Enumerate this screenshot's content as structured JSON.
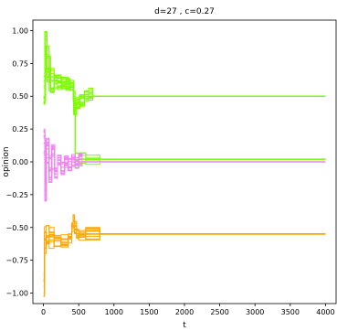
{
  "chart_data": {
    "type": "line",
    "title": "d=27 , c=0.27",
    "xlabel": "t",
    "ylabel": "opinion",
    "xlim": [
      -150,
      4150
    ],
    "ylim": [
      -1.08,
      1.08
    ],
    "xticks": [
      0,
      500,
      1000,
      1500,
      2000,
      2500,
      3000,
      3500,
      4000
    ],
    "xtick_labels": [
      "0",
      "500",
      "1000",
      "1500",
      "2000",
      "2500",
      "3000",
      "3500",
      "4000"
    ],
    "yticks": [
      1.0,
      0.75,
      0.5,
      0.25,
      0.0,
      -0.25,
      -0.5,
      -0.75,
      -1.0
    ],
    "ytick_labels": [
      "1.00",
      "0.75",
      "0.50",
      "0.25",
      "0.00",
      "−0.25",
      "−0.50",
      "−0.75",
      "−1.00"
    ],
    "grid": false,
    "series": [
      {
        "color": "#7cfc00",
        "converged_value": 0.5,
        "count": 12,
        "x": [
          0,
          20,
          50,
          100,
          150,
          200,
          260,
          320,
          380,
          430,
          470,
          520,
          580,
          640,
          700,
          800,
          900,
          1000,
          2000,
          3000,
          4000
        ],
        "y": [
          0.55,
          0.9,
          0.7,
          0.62,
          0.6,
          0.6,
          0.6,
          0.59,
          0.58,
          0.4,
          0.45,
          0.47,
          0.5,
          0.52,
          0.5,
          0.5,
          0.5,
          0.5,
          0.5,
          0.5,
          0.5
        ]
      },
      {
        "color": "#7cfc00",
        "converged_value": 0.02,
        "count": 4,
        "x": [
          0,
          30,
          80,
          150,
          250,
          350,
          420,
          450,
          500,
          600,
          800,
          1000,
          2000,
          3000,
          4000
        ],
        "y": [
          0.5,
          0.8,
          0.6,
          0.62,
          0.6,
          0.55,
          0.5,
          0.03,
          0.02,
          0.02,
          0.02,
          0.02,
          0.02,
          0.02,
          0.02
        ]
      },
      {
        "color": "#ee82ee",
        "converged_value": 0.0,
        "count": 12,
        "x": [
          0,
          20,
          40,
          80,
          120,
          160,
          200,
          250,
          300,
          350,
          400,
          450,
          500,
          550
        ],
        "y": [
          0.15,
          -0.2,
          0.1,
          -0.05,
          0.05,
          -0.08,
          0.02,
          -0.05,
          0.0,
          -0.02,
          0.01,
          0.0,
          0.01,
          0.01
        ]
      },
      {
        "color": "#ffa500",
        "converged_value": -0.55,
        "count": 10,
        "x": [
          0,
          15,
          40,
          80,
          150,
          250,
          350,
          400,
          420,
          440,
          470,
          500,
          600,
          800,
          1000,
          2000,
          3000,
          4000
        ],
        "y": [
          -0.95,
          -0.6,
          -0.56,
          -0.58,
          -0.6,
          -0.6,
          -0.58,
          -0.5,
          -0.45,
          -0.5,
          -0.56,
          -0.55,
          -0.55,
          -0.55,
          -0.55,
          -0.55,
          -0.55,
          -0.55
        ]
      }
    ]
  }
}
